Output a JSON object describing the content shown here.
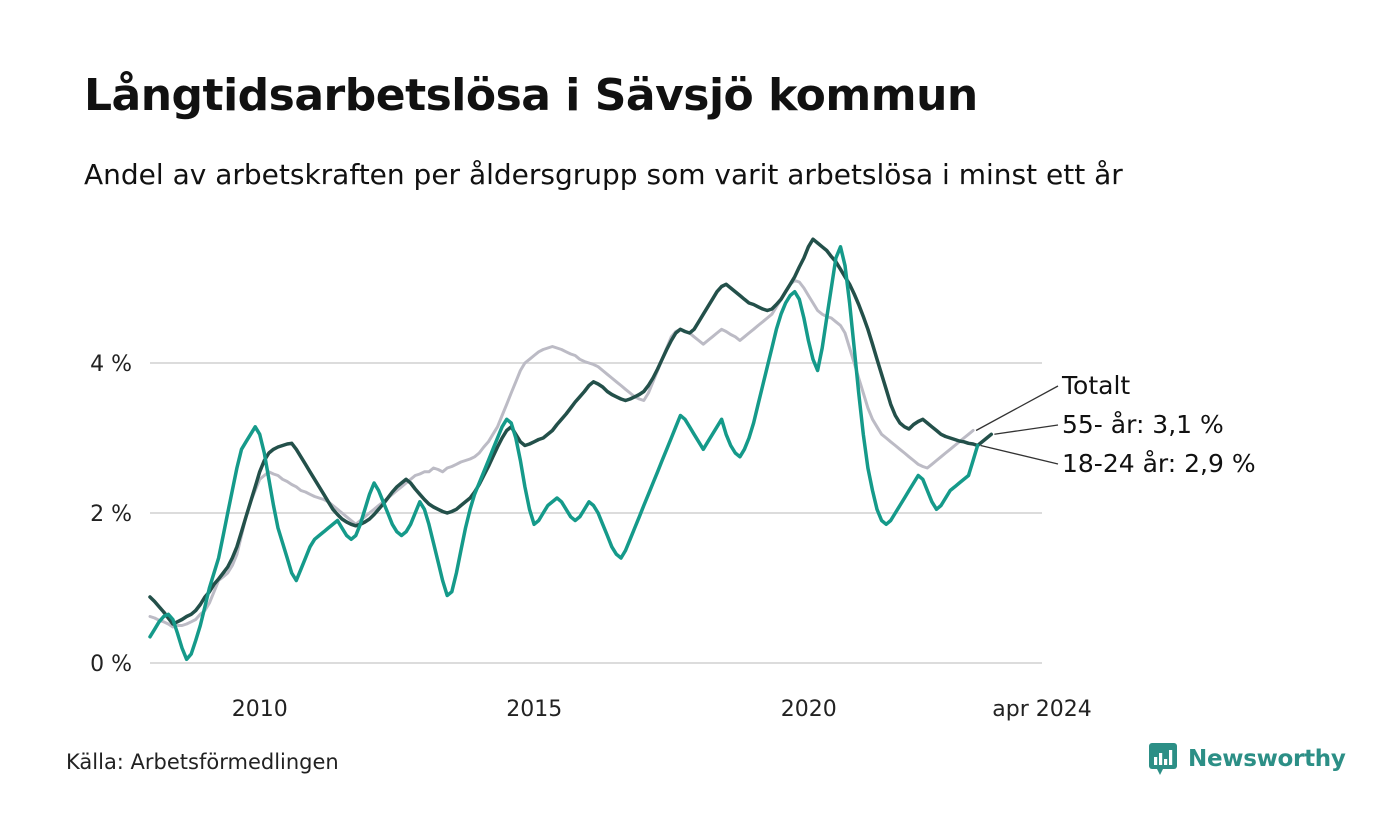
{
  "title": "Långtidsarbetslösa i Sävsjö kommun",
  "subtitle": "Andel av arbetskraften per åldersgrupp som varit arbetslösa i minst ett år",
  "source": "Källa: Arbetsförmedlingen",
  "brand": "Newsworthy",
  "colors": {
    "totalt": "#bcbbc5",
    "age55": "#23504a",
    "age18_24": "#159a8a",
    "grid": "#dcdcdc",
    "brand": "#2c8f86"
  },
  "chart_data": {
    "type": "line",
    "x_start": 2008.0,
    "x_end": 2024.25,
    "step_years": 0.0833,
    "ylim": [
      0,
      5.8
    ],
    "yticks": [
      {
        "value": 0,
        "label": "0 %"
      },
      {
        "value": 2,
        "label": "2 %"
      },
      {
        "value": 4,
        "label": "4 %"
      }
    ],
    "xticks": [
      {
        "value": 2010,
        "label": "2010"
      },
      {
        "value": 2015,
        "label": "2015"
      },
      {
        "value": 2020,
        "label": "2020"
      },
      {
        "value": 2024.25,
        "label": "apr 2024"
      }
    ],
    "grid": true,
    "series": [
      {
        "key": "totalt",
        "name": "Totalt",
        "label": "Totalt",
        "values": [
          0.62,
          0.6,
          0.57,
          0.55,
          0.52,
          0.48,
          0.5,
          0.5,
          0.52,
          0.55,
          0.58,
          0.65,
          0.7,
          0.8,
          0.95,
          1.1,
          1.15,
          1.2,
          1.3,
          1.45,
          1.7,
          1.95,
          2.15,
          2.3,
          2.45,
          2.5,
          2.55,
          2.52,
          2.5,
          2.45,
          2.42,
          2.38,
          2.35,
          2.3,
          2.28,
          2.25,
          2.22,
          2.2,
          2.18,
          2.15,
          2.1,
          2.05,
          2.0,
          1.95,
          1.9,
          1.85,
          1.9,
          1.95,
          2.0,
          2.05,
          2.1,
          2.15,
          2.2,
          2.25,
          2.3,
          2.35,
          2.4,
          2.45,
          2.5,
          2.52,
          2.55,
          2.55,
          2.6,
          2.58,
          2.55,
          2.6,
          2.62,
          2.65,
          2.68,
          2.7,
          2.72,
          2.75,
          2.8,
          2.88,
          2.95,
          3.05,
          3.15,
          3.3,
          3.45,
          3.6,
          3.75,
          3.9,
          4.0,
          4.05,
          4.1,
          4.15,
          4.18,
          4.2,
          4.22,
          4.2,
          4.18,
          4.15,
          4.12,
          4.1,
          4.05,
          4.02,
          4.0,
          3.98,
          3.95,
          3.9,
          3.85,
          3.8,
          3.75,
          3.7,
          3.65,
          3.6,
          3.55,
          3.52,
          3.5,
          3.6,
          3.75,
          3.9,
          4.05,
          4.2,
          4.35,
          4.42,
          4.45,
          4.42,
          4.4,
          4.35,
          4.3,
          4.25,
          4.3,
          4.35,
          4.4,
          4.45,
          4.42,
          4.38,
          4.35,
          4.3,
          4.35,
          4.4,
          4.45,
          4.5,
          4.55,
          4.6,
          4.65,
          4.75,
          4.85,
          4.95,
          5.05,
          5.1,
          5.08,
          5.0,
          4.9,
          4.8,
          4.7,
          4.65,
          4.62,
          4.6,
          4.55,
          4.5,
          4.4,
          4.2,
          4.0,
          3.8,
          3.6,
          3.4,
          3.25,
          3.15,
          3.05,
          3.0,
          2.95,
          2.9,
          2.85,
          2.8,
          2.75,
          2.7,
          2.65,
          2.62,
          2.6,
          2.65,
          2.7,
          2.75,
          2.8,
          2.85,
          2.9,
          2.95,
          3.0,
          3.05,
          3.1
        ]
      },
      {
        "key": "age55",
        "name": "55- år",
        "label": "55- år: 3,1 %",
        "values": [
          0.88,
          0.82,
          0.75,
          0.68,
          0.6,
          0.52,
          0.55,
          0.58,
          0.62,
          0.65,
          0.7,
          0.78,
          0.88,
          0.95,
          1.05,
          1.12,
          1.2,
          1.28,
          1.4,
          1.55,
          1.75,
          1.95,
          2.15,
          2.35,
          2.55,
          2.7,
          2.8,
          2.85,
          2.88,
          2.9,
          2.92,
          2.93,
          2.85,
          2.75,
          2.65,
          2.55,
          2.45,
          2.35,
          2.25,
          2.15,
          2.05,
          1.98,
          1.92,
          1.88,
          1.85,
          1.83,
          1.85,
          1.88,
          1.92,
          1.98,
          2.05,
          2.12,
          2.2,
          2.28,
          2.35,
          2.4,
          2.45,
          2.4,
          2.32,
          2.25,
          2.18,
          2.12,
          2.08,
          2.05,
          2.02,
          2.0,
          2.02,
          2.05,
          2.1,
          2.15,
          2.2,
          2.28,
          2.38,
          2.5,
          2.62,
          2.75,
          2.88,
          3.0,
          3.1,
          3.15,
          3.05,
          2.95,
          2.9,
          2.92,
          2.95,
          2.98,
          3.0,
          3.05,
          3.1,
          3.18,
          3.25,
          3.32,
          3.4,
          3.48,
          3.55,
          3.62,
          3.7,
          3.75,
          3.72,
          3.68,
          3.62,
          3.58,
          3.55,
          3.52,
          3.5,
          3.52,
          3.55,
          3.58,
          3.62,
          3.7,
          3.8,
          3.92,
          4.05,
          4.18,
          4.3,
          4.4,
          4.45,
          4.42,
          4.4,
          4.45,
          4.55,
          4.65,
          4.75,
          4.85,
          4.95,
          5.02,
          5.05,
          5.0,
          4.95,
          4.9,
          4.85,
          4.8,
          4.78,
          4.75,
          4.72,
          4.7,
          4.72,
          4.78,
          4.85,
          4.95,
          5.05,
          5.15,
          5.28,
          5.4,
          5.55,
          5.65,
          5.6,
          5.55,
          5.5,
          5.42,
          5.35,
          5.25,
          5.15,
          5.05,
          4.92,
          4.78,
          4.62,
          4.45,
          4.25,
          4.05,
          3.85,
          3.65,
          3.45,
          3.3,
          3.2,
          3.15,
          3.12,
          3.18,
          3.22,
          3.25,
          3.2,
          3.15,
          3.1,
          3.05,
          3.02,
          3.0,
          2.98,
          2.96,
          2.95,
          2.93,
          2.92,
          2.9,
          2.95,
          3.0,
          3.05
        ]
      },
      {
        "key": "age18_24",
        "name": "18-24 år",
        "label": "18-24 år: 2,9 %",
        "values": [
          0.35,
          0.45,
          0.55,
          0.62,
          0.65,
          0.58,
          0.4,
          0.2,
          0.05,
          0.12,
          0.3,
          0.5,
          0.75,
          1.0,
          1.2,
          1.4,
          1.7,
          2.0,
          2.3,
          2.6,
          2.85,
          2.95,
          3.05,
          3.15,
          3.05,
          2.8,
          2.45,
          2.1,
          1.8,
          1.6,
          1.4,
          1.2,
          1.1,
          1.25,
          1.4,
          1.55,
          1.65,
          1.7,
          1.75,
          1.8,
          1.85,
          1.9,
          1.8,
          1.7,
          1.65,
          1.7,
          1.85,
          2.05,
          2.25,
          2.4,
          2.3,
          2.15,
          2.0,
          1.85,
          1.75,
          1.7,
          1.75,
          1.85,
          2.0,
          2.15,
          2.05,
          1.85,
          1.6,
          1.35,
          1.1,
          0.9,
          0.95,
          1.2,
          1.5,
          1.8,
          2.05,
          2.25,
          2.4,
          2.55,
          2.7,
          2.85,
          3.0,
          3.15,
          3.25,
          3.2,
          3.0,
          2.7,
          2.35,
          2.05,
          1.85,
          1.9,
          2.0,
          2.1,
          2.15,
          2.2,
          2.15,
          2.05,
          1.95,
          1.9,
          1.95,
          2.05,
          2.15,
          2.1,
          2.0,
          1.85,
          1.7,
          1.55,
          1.45,
          1.4,
          1.5,
          1.65,
          1.8,
          1.95,
          2.1,
          2.25,
          2.4,
          2.55,
          2.7,
          2.85,
          3.0,
          3.15,
          3.3,
          3.25,
          3.15,
          3.05,
          2.95,
          2.85,
          2.95,
          3.05,
          3.15,
          3.25,
          3.05,
          2.9,
          2.8,
          2.75,
          2.85,
          3.0,
          3.2,
          3.45,
          3.7,
          3.95,
          4.2,
          4.45,
          4.65,
          4.8,
          4.9,
          4.95,
          4.85,
          4.6,
          4.3,
          4.05,
          3.9,
          4.2,
          4.6,
          5.0,
          5.4,
          5.55,
          5.3,
          4.8,
          4.2,
          3.6,
          3.05,
          2.6,
          2.3,
          2.05,
          1.9,
          1.85,
          1.9,
          2.0,
          2.1,
          2.2,
          2.3,
          2.4,
          2.5,
          2.45,
          2.3,
          2.15,
          2.05,
          2.1,
          2.2,
          2.3,
          2.35,
          2.4,
          2.45,
          2.5,
          2.7,
          2.9
        ]
      }
    ]
  }
}
